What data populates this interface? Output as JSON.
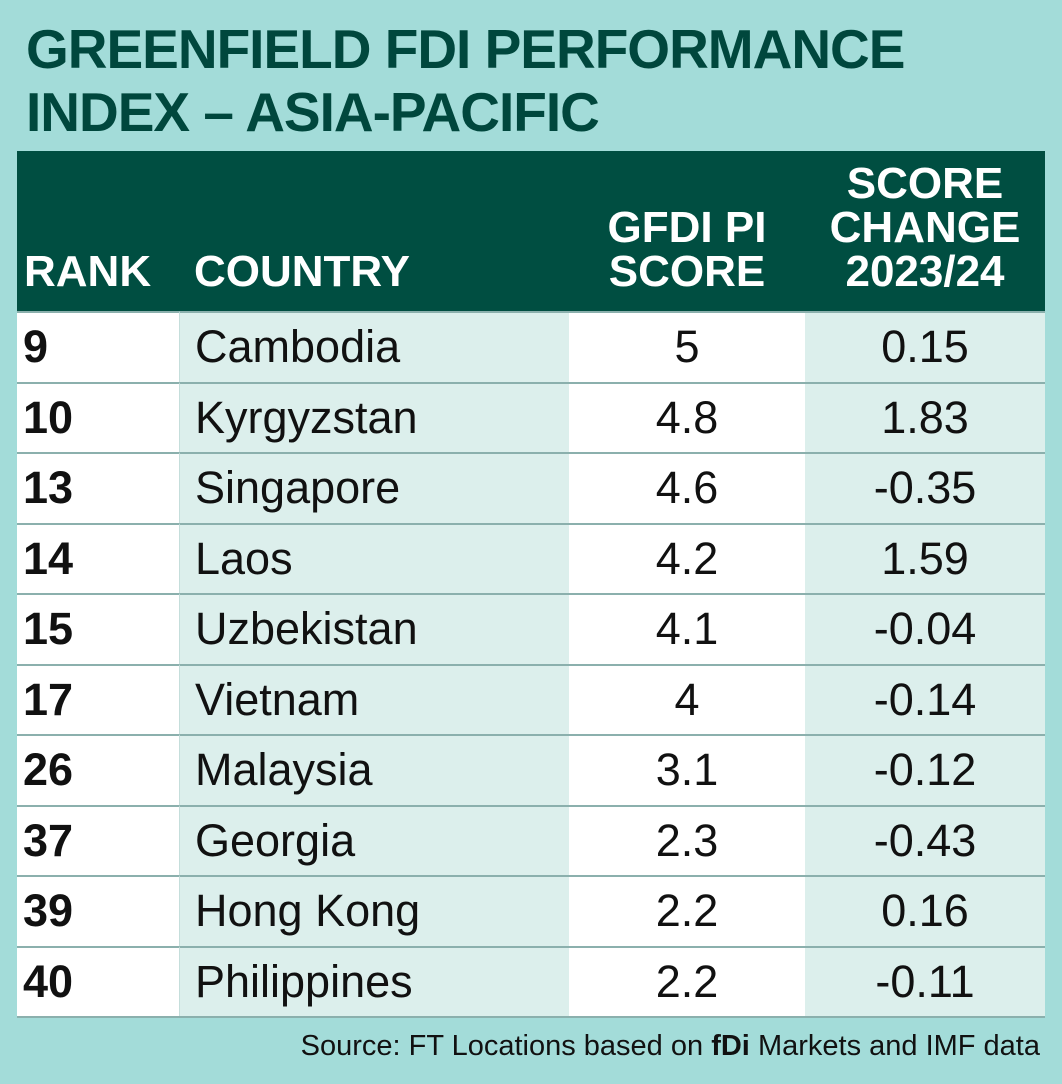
{
  "chart_data": {
    "type": "table",
    "title": "GREENFIELD FDI PERFORMANCE INDEX – ASIA-PACIFIC",
    "columns": [
      [
        "RANK"
      ],
      [
        "COUNTRY"
      ],
      [
        "GFDI PI",
        "SCORE"
      ],
      [
        "SCORE",
        "CHANGE",
        "2023/24"
      ]
    ],
    "rows": [
      {
        "rank": "9",
        "country": "Cambodia",
        "score": "5",
        "change": "0.15"
      },
      {
        "rank": "10",
        "country": "Kyrgyzstan",
        "score": "4.8",
        "change": "1.83"
      },
      {
        "rank": "13",
        "country": "Singapore",
        "score": "4.6",
        "change": "-0.35"
      },
      {
        "rank": "14",
        "country": "Laos",
        "score": "4.2",
        "change": "1.59"
      },
      {
        "rank": "15",
        "country": "Uzbekistan",
        "score": "4.1",
        "change": "-0.04"
      },
      {
        "rank": "17",
        "country": "Vietnam",
        "score": "4",
        "change": "-0.14"
      },
      {
        "rank": "26",
        "country": "Malaysia",
        "score": "3.1",
        "change": "-0.12"
      },
      {
        "rank": "37",
        "country": "Georgia",
        "score": "2.3",
        "change": "-0.43"
      },
      {
        "rank": "39",
        "country": "Hong Kong",
        "score": "2.2",
        "change": "0.16"
      },
      {
        "rank": "40",
        "country": "Philippines",
        "score": "2.2",
        "change": "-0.11"
      }
    ],
    "source": {
      "prefix": "Source: FT Locations based on",
      "brand": "fDi",
      "suffix": "Markets and IMF data"
    }
  },
  "colors": {
    "background": "#a3dcd9",
    "title": "#00473d",
    "header_background": "#004e41",
    "row_tint": "#dcefec"
  }
}
